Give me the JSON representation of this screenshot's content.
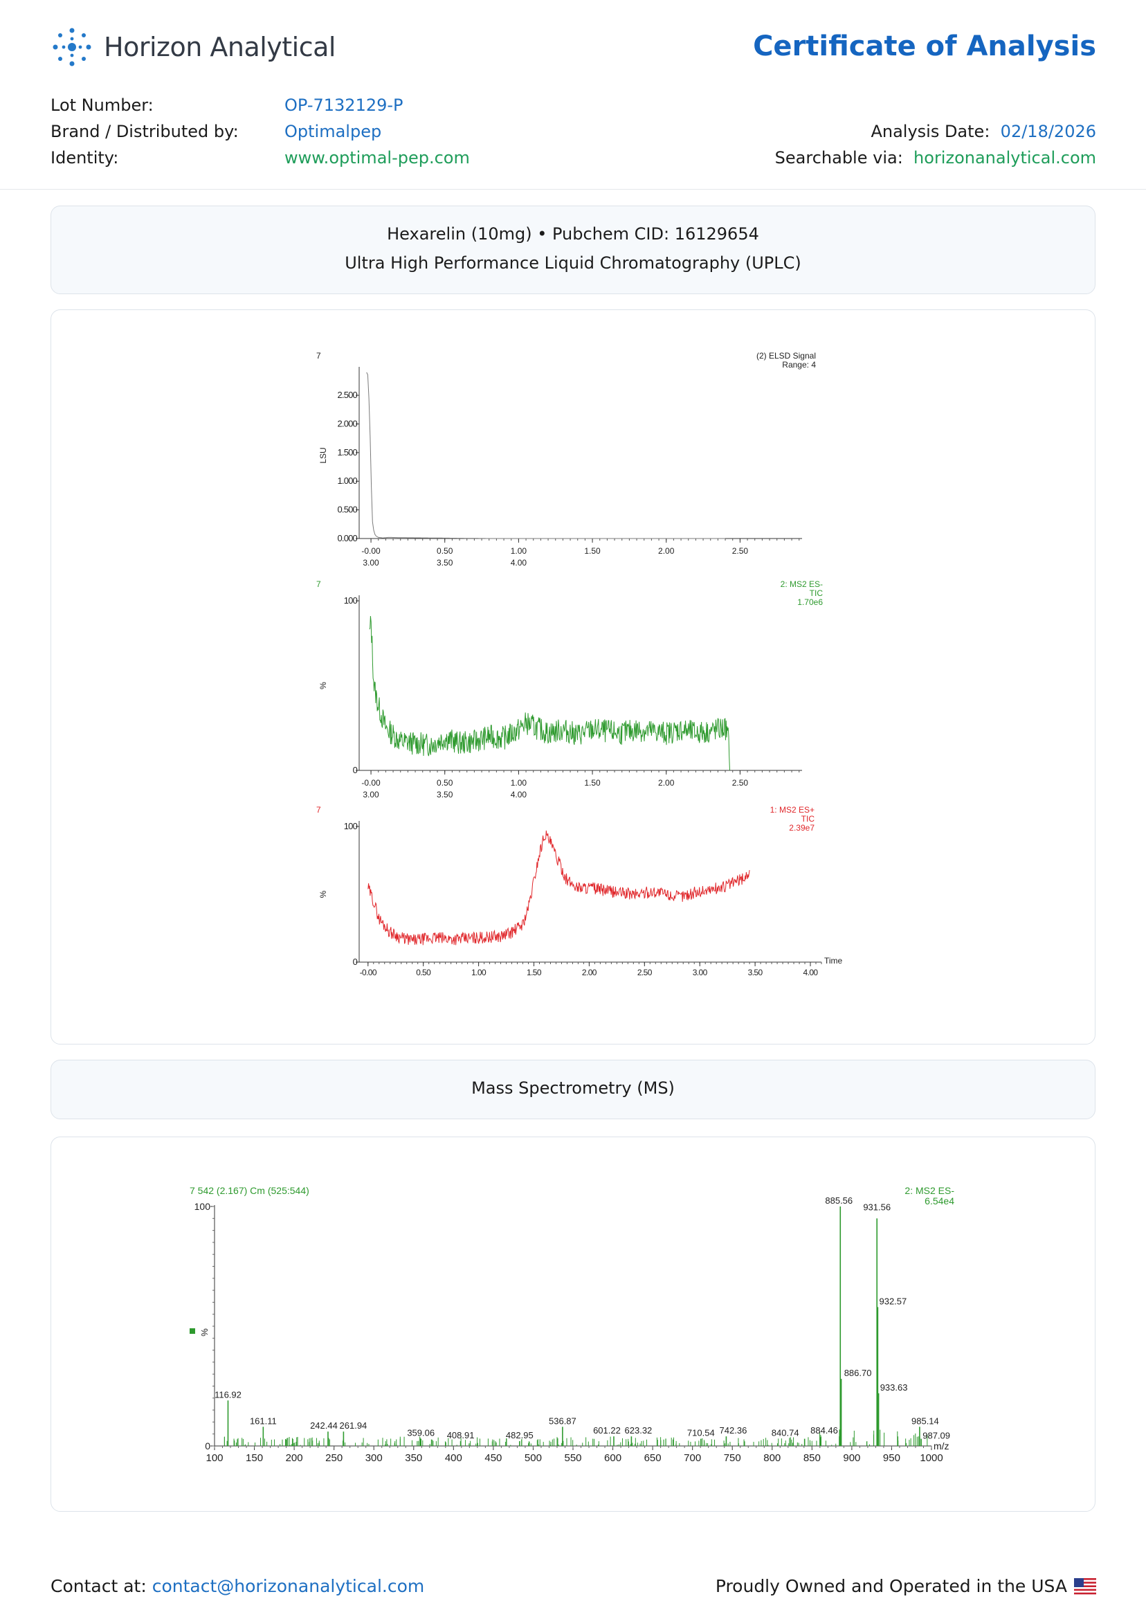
{
  "header": {
    "company": "Horizon Analytical",
    "title": "Certificate of Analysis",
    "lot_label": "Lot Number:",
    "lot_value": "OP-7132129-P",
    "brand_label": "Brand / Distributed by:",
    "brand_value": "Optimalpep",
    "identity_label": "Identity:",
    "identity_value": "www.optimal-pep.com",
    "date_label": "Analysis Date:",
    "date_value": "02/18/2026",
    "search_label": "Searchable via:",
    "search_value": "horizonanalytical.com"
  },
  "uplc": {
    "line1": "Hexarelin (10mg) • Pubchem CID: 16129654",
    "line2": "Ultra High Performance Liquid Chromatography (UPLC)"
  },
  "ms": {
    "title": "Mass Spectrometry (MS)"
  },
  "footer": {
    "contact_label": "Contact at:",
    "contact_email": "contact@horizonanalytical.com",
    "usa_text": "Proudly Owned and Operated in the USA"
  },
  "chart_data": [
    {
      "type": "line",
      "corner": "7",
      "legend": [
        "(2) ELSD Signal",
        "Range: 4"
      ],
      "ylabel": "LSU",
      "yticks": [
        "0.000",
        "0.500",
        "1.000",
        "1.500",
        "2.000",
        "2.500"
      ],
      "xticks_top": [
        "-0.00",
        "0.50",
        "1.00",
        "1.50",
        "2.00",
        "2.50"
      ],
      "xticks_bottom": [
        "3.00",
        "3.50",
        "4.00"
      ],
      "ylim": [
        0,
        2.9
      ],
      "xlim": [
        -0.08,
        2.92
      ],
      "color": "#7a7a7a",
      "series": [
        {
          "x": [
            -0.03,
            -0.02,
            -0.01,
            0.0,
            0.005,
            0.01,
            0.02,
            0.03,
            0.05,
            0.08,
            0.12,
            0.2,
            0.4,
            0.8,
            1.2,
            1.6,
            2.0,
            2.4
          ],
          "y": [
            2.9,
            2.85,
            2.2,
            1.2,
            0.6,
            0.3,
            0.12,
            0.05,
            0.02,
            0.01,
            0.02,
            0.015,
            0.01,
            0.0,
            0.0,
            0.0,
            0.0,
            0.0
          ]
        }
      ]
    },
    {
      "type": "line",
      "corner": "7",
      "legend": [
        "2: MS2 ES-",
        "TIC",
        "1.70e6"
      ],
      "ylabel": "%",
      "yticks": [
        "0",
        "100"
      ],
      "xticks_top": [
        "-0.00",
        "0.50",
        "1.00",
        "1.50",
        "2.00",
        "2.50"
      ],
      "xticks_bottom": [
        "3.00",
        "3.50",
        "4.00"
      ],
      "ylim": [
        0,
        100
      ],
      "xlim": [
        -0.08,
        2.92
      ],
      "color": "#2e9a2e",
      "series": [
        {
          "x": [
            -0.01,
            0.0,
            0.02,
            0.05,
            0.1,
            0.2,
            0.3,
            0.4,
            0.5,
            0.6,
            0.7,
            0.8,
            0.9,
            1.0,
            1.05,
            1.1,
            1.2,
            1.3,
            1.4,
            1.5,
            1.6,
            1.7,
            1.8,
            1.9,
            2.0,
            2.1,
            2.2,
            2.3,
            2.4,
            2.42,
            2.43
          ],
          "y": [
            80,
            88,
            50,
            38,
            25,
            17,
            16,
            15,
            19,
            16,
            17,
            20,
            19,
            24,
            28,
            26,
            22,
            24,
            21,
            24,
            23,
            22,
            24,
            23,
            22,
            24,
            22,
            23,
            25,
            20,
            0
          ]
        }
      ]
    },
    {
      "type": "line",
      "corner": "7",
      "legend": [
        "1: MS2 ES+",
        "TIC",
        "2.39e7"
      ],
      "ylabel": "%",
      "yticks": [
        "0",
        "100"
      ],
      "xticks": [
        "-0.00",
        "0.50",
        "1.00",
        "1.50",
        "2.00",
        "2.50",
        "3.00",
        "3.50",
        "4.00"
      ],
      "xlabel": "Time",
      "ylim": [
        0,
        100
      ],
      "xlim": [
        -0.08,
        4.1
      ],
      "color": "#e0262a",
      "series": [
        {
          "x": [
            0.0,
            0.05,
            0.1,
            0.2,
            0.3,
            0.4,
            0.5,
            0.6,
            0.8,
            1.0,
            1.2,
            1.3,
            1.4,
            1.45,
            1.5,
            1.55,
            1.6,
            1.65,
            1.7,
            1.8,
            1.9,
            2.0,
            2.2,
            2.4,
            2.6,
            2.8,
            3.0,
            3.2,
            3.4,
            3.45
          ],
          "y": [
            55,
            45,
            32,
            22,
            18,
            16,
            17,
            18,
            17,
            18,
            19,
            22,
            28,
            40,
            60,
            80,
            95,
            88,
            78,
            60,
            55,
            55,
            52,
            50,
            52,
            48,
            52,
            55,
            62,
            66
          ]
        }
      ]
    },
    {
      "type": "bar",
      "corner": "7 542 (2.167) Cm (525:544)",
      "legend": [
        "2: MS2 ES-",
        "6.54e4"
      ],
      "ylabel": "%",
      "xlabel": "m/z",
      "yticks": [
        "0",
        "100"
      ],
      "xticks": [
        "100",
        "150",
        "200",
        "250",
        "300",
        "350",
        "400",
        "450",
        "500",
        "550",
        "600",
        "650",
        "700",
        "750",
        "800",
        "850",
        "900",
        "950",
        "1000"
      ],
      "xlim": [
        100,
        1000
      ],
      "ylim": [
        0,
        100
      ],
      "color": "#2e9a2e",
      "peaks": [
        {
          "x": 116.92,
          "y": 19,
          "label": "116.92"
        },
        {
          "x": 161.11,
          "y": 8,
          "label": "161.11"
        },
        {
          "x": 242.44,
          "y": 6,
          "label": "242.44"
        },
        {
          "x": 261.94,
          "y": 6,
          "label": "261.94"
        },
        {
          "x": 359.06,
          "y": 3,
          "label": "359.06"
        },
        {
          "x": 408.91,
          "y": 2,
          "label": "408.91"
        },
        {
          "x": 482.95,
          "y": 2,
          "label": "482.95"
        },
        {
          "x": 536.87,
          "y": 8,
          "label": "536.87"
        },
        {
          "x": 601.22,
          "y": 4,
          "label": "601.22"
        },
        {
          "x": 623.32,
          "y": 4,
          "label": "623.32"
        },
        {
          "x": 710.54,
          "y": 3,
          "label": "710.54"
        },
        {
          "x": 742.36,
          "y": 4,
          "label": "742.36"
        },
        {
          "x": 840.74,
          "y": 3,
          "label": "840.74"
        },
        {
          "x": 884.46,
          "y": 4,
          "label": "884.46"
        },
        {
          "x": 885.56,
          "y": 100,
          "label": "885.56"
        },
        {
          "x": 886.7,
          "y": 28,
          "label": "886.70"
        },
        {
          "x": 931.56,
          "y": 95,
          "label": "931.56"
        },
        {
          "x": 932.57,
          "y": 58,
          "label": "932.57"
        },
        {
          "x": 933.63,
          "y": 22,
          "label": "933.63"
        },
        {
          "x": 985.14,
          "y": 8,
          "label": "985.14"
        },
        {
          "x": 987.09,
          "y": 3,
          "label": "987.09"
        }
      ]
    }
  ]
}
